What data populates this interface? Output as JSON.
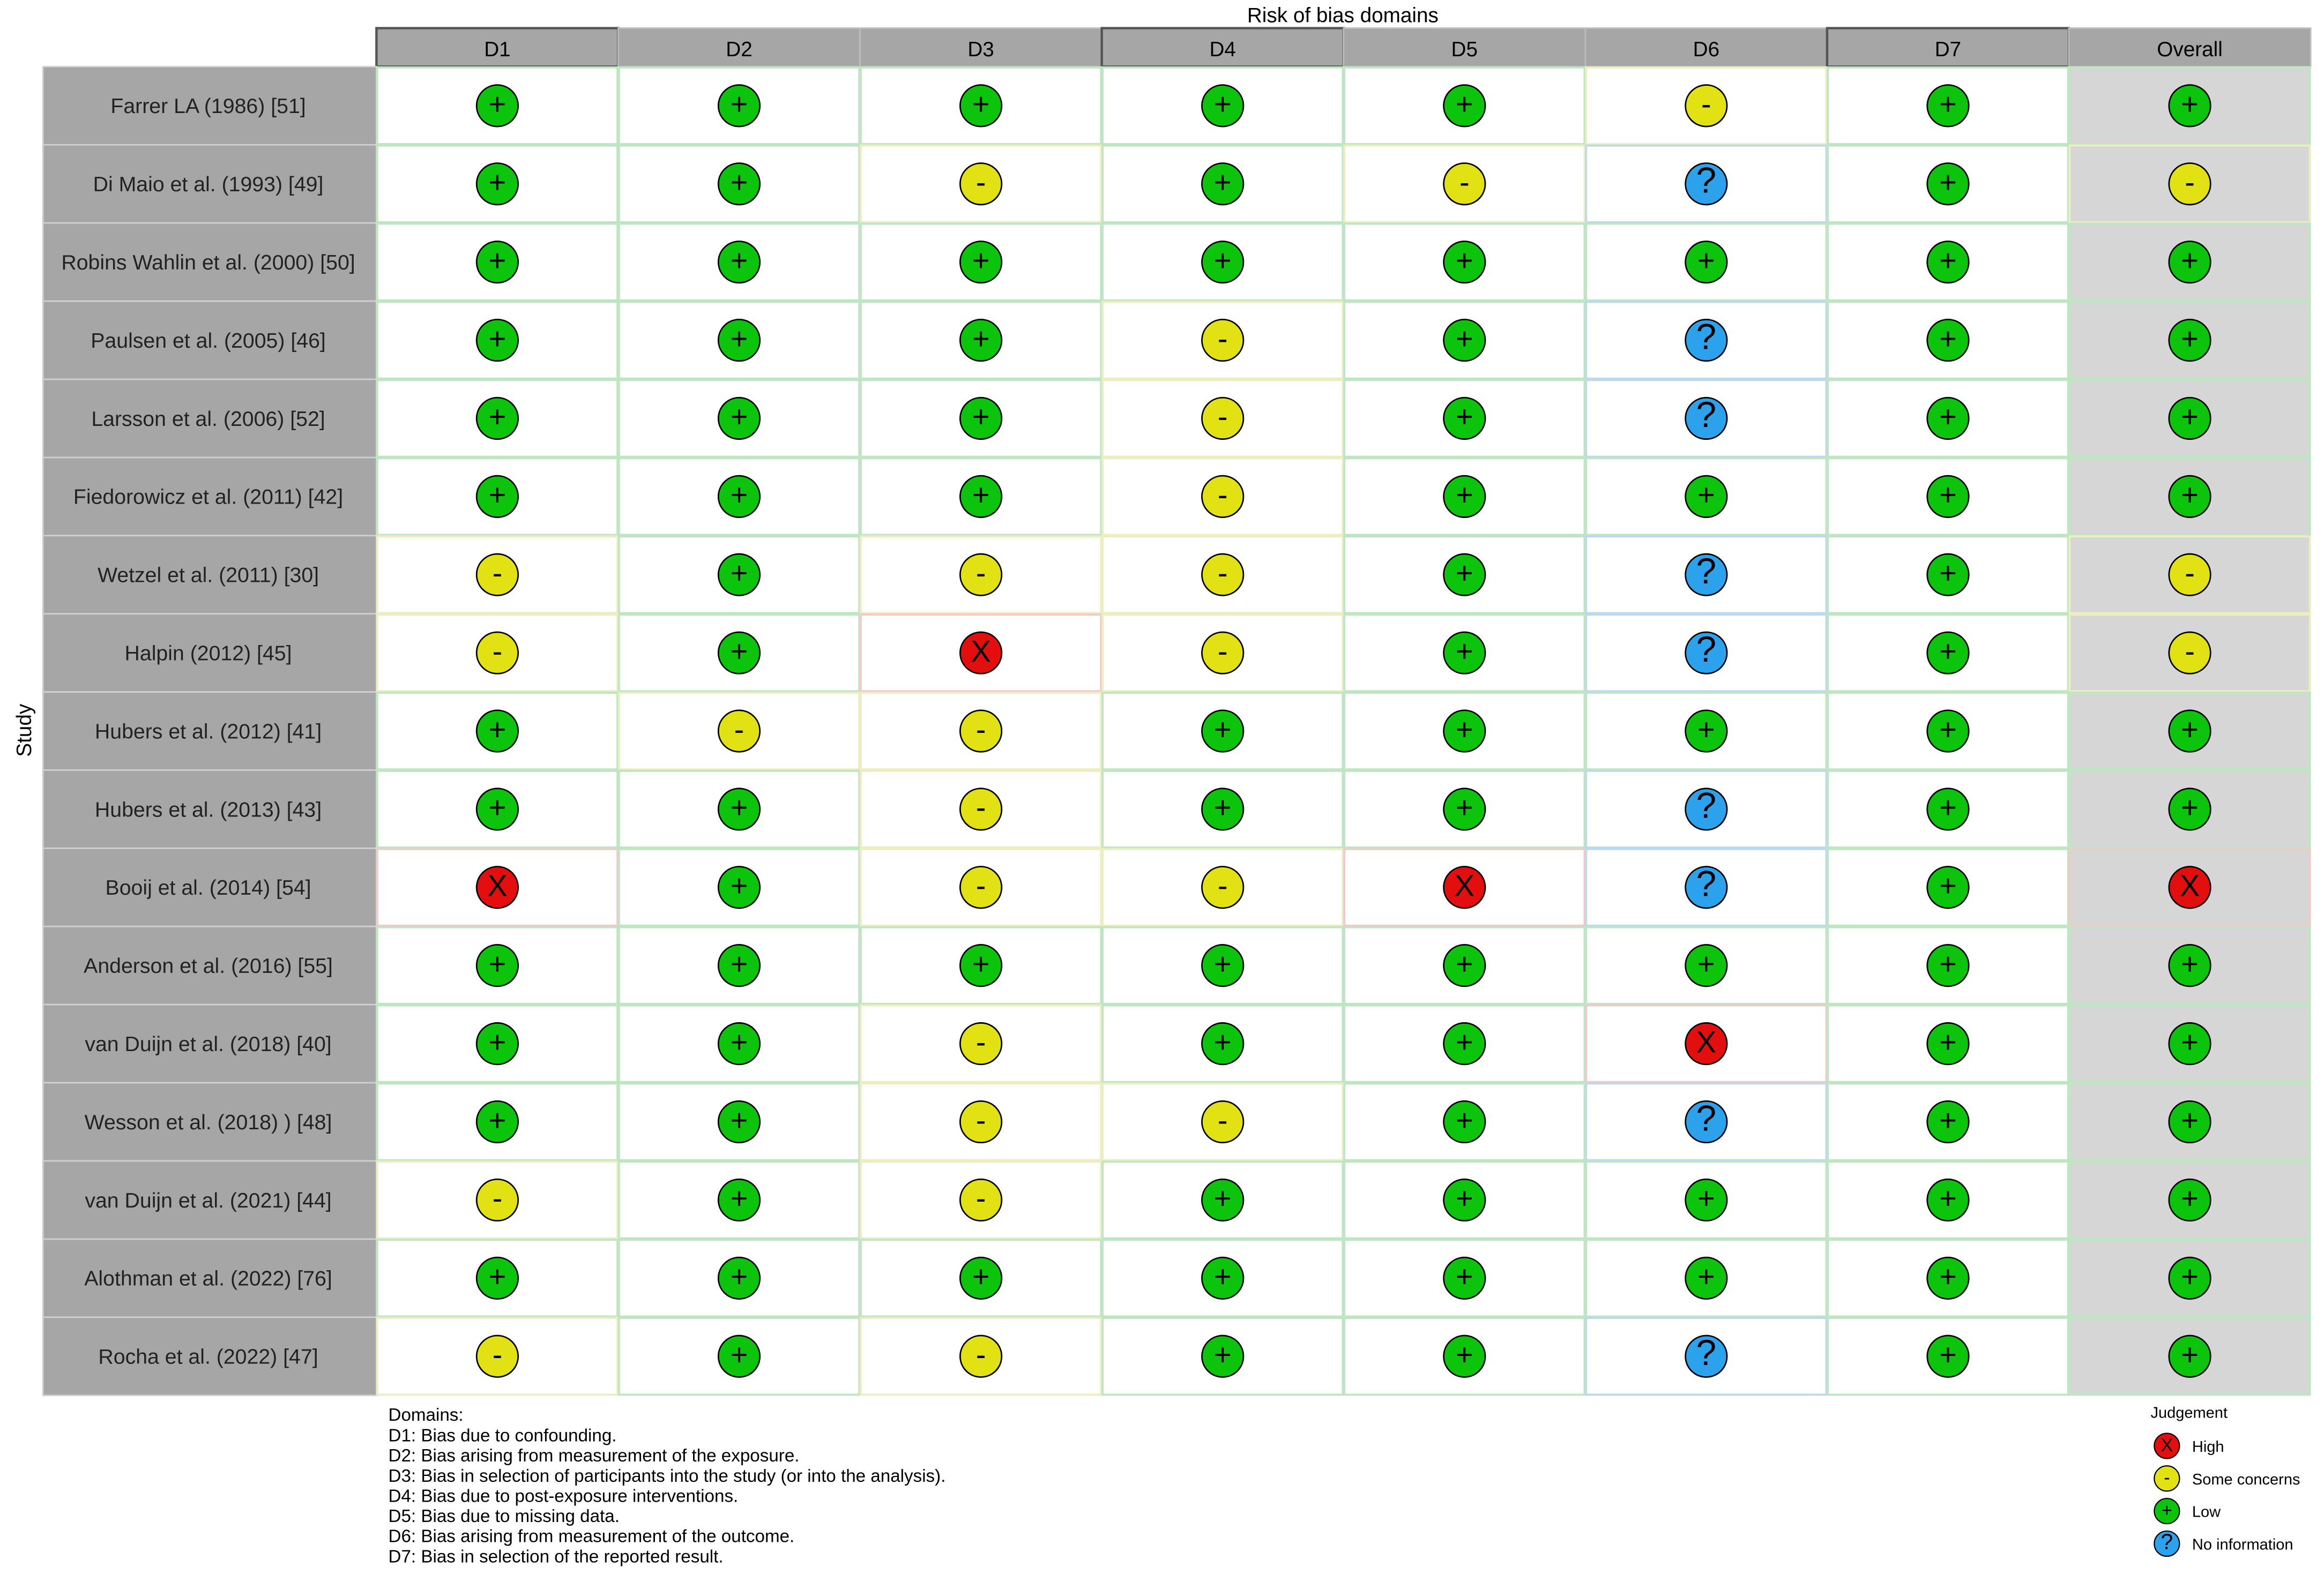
{
  "chart_data": {
    "type": "heatmap",
    "title": "Risk of bias domains",
    "ylabel": "Study",
    "columns": [
      "D1",
      "D2",
      "D3",
      "D4",
      "D5",
      "D6",
      "D7",
      "Overall"
    ],
    "judgement_colors": {
      "High": "#e30f0f",
      "Some concerns": "#e1e114",
      "Low": "#0cc40c",
      "No information": "#2ba2eb"
    },
    "judgement_symbols": {
      "High": "X",
      "Some concerns": "-",
      "Low": "+",
      "No information": "?"
    },
    "studies": [
      {
        "name": "Farrer LA (1986) [51]",
        "judgements": [
          "Low",
          "Low",
          "Low",
          "Low",
          "Low",
          "Some concerns",
          "Low",
          "Low"
        ]
      },
      {
        "name": "Di Maio et al. (1993) [49]",
        "judgements": [
          "Low",
          "Low",
          "Some concerns",
          "Low",
          "Some concerns",
          "No information",
          "Low",
          "Some concerns"
        ]
      },
      {
        "name": "Robins Wahlin et al. (2000) [50]",
        "judgements": [
          "Low",
          "Low",
          "Low",
          "Low",
          "Low",
          "Low",
          "Low",
          "Low"
        ]
      },
      {
        "name": "Paulsen et al. (2005) [46]",
        "judgements": [
          "Low",
          "Low",
          "Low",
          "Some concerns",
          "Low",
          "No information",
          "Low",
          "Low"
        ]
      },
      {
        "name": "Larsson et al. (2006) [52]",
        "judgements": [
          "Low",
          "Low",
          "Low",
          "Some concerns",
          "Low",
          "No information",
          "Low",
          "Low"
        ]
      },
      {
        "name": "Fiedorowicz et al. (2011) [42]",
        "judgements": [
          "Low",
          "Low",
          "Low",
          "Some concerns",
          "Low",
          "Low",
          "Low",
          "Low"
        ]
      },
      {
        "name": "Wetzel et al. (2011) [30]",
        "judgements": [
          "Some concerns",
          "Low",
          "Some concerns",
          "Some concerns",
          "Low",
          "No information",
          "Low",
          "Some concerns"
        ]
      },
      {
        "name": "Halpin (2012) [45]",
        "judgements": [
          "Some concerns",
          "Low",
          "High",
          "Some concerns",
          "Low",
          "No information",
          "Low",
          "Some concerns"
        ]
      },
      {
        "name": "Hubers et al. (2012) [41]",
        "judgements": [
          "Low",
          "Some concerns",
          "Some concerns",
          "Low",
          "Low",
          "Low",
          "Low",
          "Low"
        ]
      },
      {
        "name": "Hubers et al. (2013) [43]",
        "judgements": [
          "Low",
          "Low",
          "Some concerns",
          "Low",
          "Low",
          "No information",
          "Low",
          "Low"
        ]
      },
      {
        "name": "Booij et al. (2014) [54]",
        "judgements": [
          "High",
          "Low",
          "Some concerns",
          "Some concerns",
          "High",
          "No information",
          "Low",
          "High"
        ]
      },
      {
        "name": "Anderson et al. (2016) [55]",
        "judgements": [
          "Low",
          "Low",
          "Low",
          "Low",
          "Low",
          "Low",
          "Low",
          "Low"
        ]
      },
      {
        "name": "van Duijn et al. (2018) [40]",
        "judgements": [
          "Low",
          "Low",
          "Some concerns",
          "Low",
          "Low",
          "High",
          "Low",
          "Low"
        ]
      },
      {
        "name": "Wesson et al. (2018) ) [48]",
        "judgements": [
          "Low",
          "Low",
          "Some concerns",
          "Some concerns",
          "Low",
          "No information",
          "Low",
          "Low"
        ]
      },
      {
        "name": "van Duijn et al. (2021) [44]",
        "judgements": [
          "Some concerns",
          "Low",
          "Some concerns",
          "Low",
          "Low",
          "Low",
          "Low",
          "Low"
        ]
      },
      {
        "name": "Alothman et al. (2022) [76]",
        "judgements": [
          "Low",
          "Low",
          "Low",
          "Low",
          "Low",
          "Low",
          "Low",
          "Low"
        ]
      },
      {
        "name": "Rocha et al. (2022) [47]",
        "judgements": [
          "Some concerns",
          "Low",
          "Some concerns",
          "Low",
          "Low",
          "No information",
          "Low",
          "Low"
        ]
      }
    ],
    "domains_caption": {
      "title": "Domains:",
      "items": [
        "D1: Bias due to confounding.",
        "D2: Bias arising from measurement of the exposure.",
        "D3: Bias in selection of participants into the study (or into the analysis).",
        "D4: Bias due to post-exposure interventions.",
        "D5: Bias due to missing data.",
        "D6: Bias arising from measurement of the outcome.",
        "D7: Bias in selection of the reported result."
      ]
    },
    "legend": {
      "title": "Judgement",
      "placement": "bottom-right",
      "entries": [
        {
          "label": "High",
          "judgement": "High"
        },
        {
          "label": "Some concerns",
          "judgement": "Some concerns"
        },
        {
          "label": "Low",
          "judgement": "Low"
        },
        {
          "label": "No information",
          "judgement": "No information"
        }
      ]
    }
  }
}
